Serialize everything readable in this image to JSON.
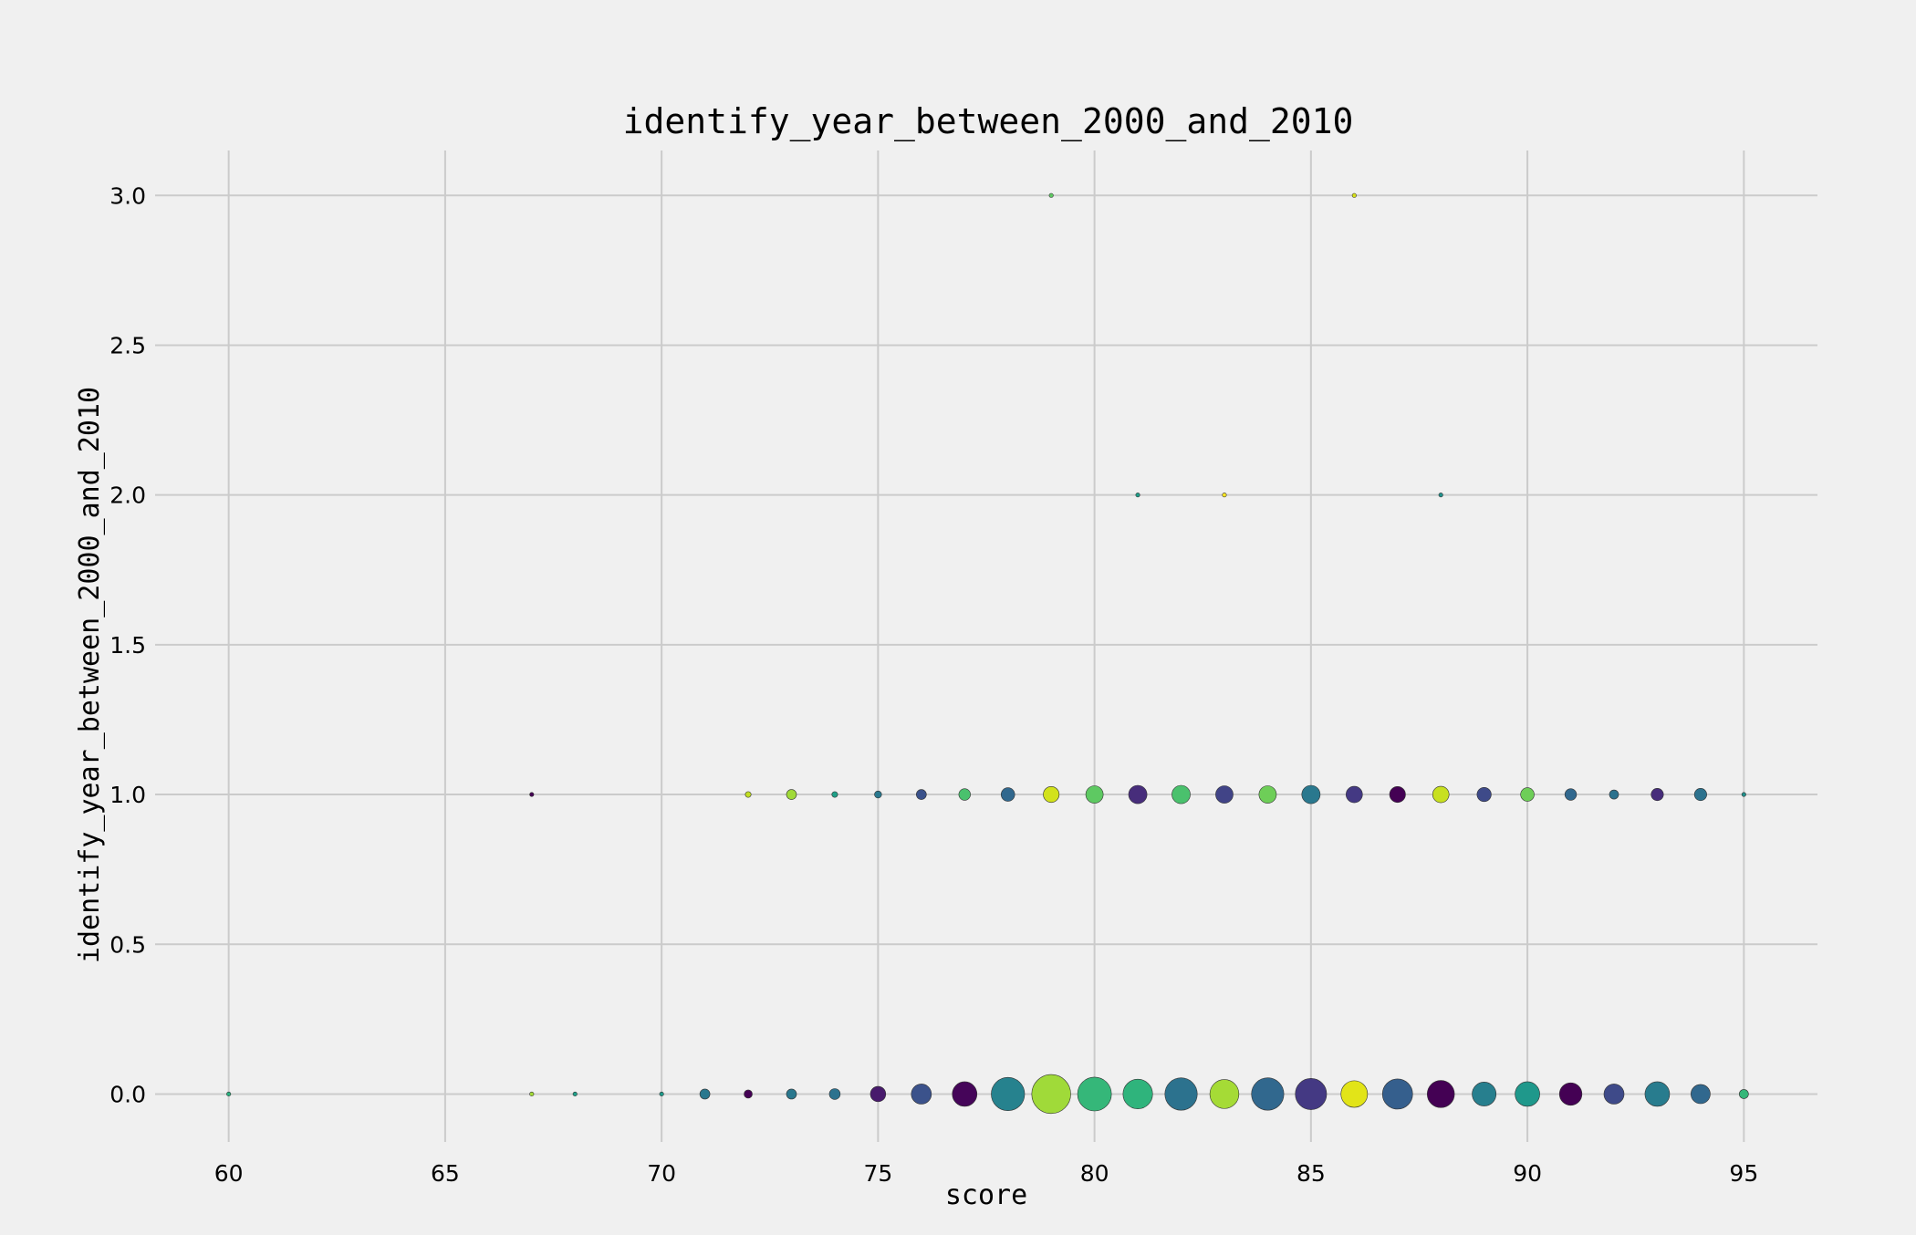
{
  "chart_data": {
    "type": "scatter",
    "title": "identify_year_between_2000_and_2010",
    "xlabel": "score",
    "ylabel": "identify_year_between_2000_and_2010",
    "xlim": [
      58.3,
      96.7
    ],
    "ylim": [
      -0.16,
      3.15
    ],
    "xticks": [
      60,
      65,
      70,
      75,
      80,
      85,
      90,
      95
    ],
    "xtick_labels": [
      "60",
      "65",
      "70",
      "75",
      "80",
      "85",
      "90",
      "95"
    ],
    "yticks": [
      0.0,
      0.5,
      1.0,
      1.5,
      2.0,
      2.5,
      3.0
    ],
    "ytick_labels": [
      "0.0",
      "0.5",
      "1.0",
      "1.5",
      "2.0",
      "2.5",
      "3.0"
    ],
    "grid": true,
    "legend": "none",
    "size_note": "marker area scales with count of observations",
    "points": [
      {
        "x": 60,
        "y": 0,
        "size": 1,
        "color": "#2ab07f"
      },
      {
        "x": 67,
        "y": 0,
        "size": 1,
        "color": "#a2da37"
      },
      {
        "x": 68,
        "y": 0,
        "size": 1,
        "color": "#1f9f88"
      },
      {
        "x": 70,
        "y": 0,
        "size": 1,
        "color": "#1f9a8a"
      },
      {
        "x": 71,
        "y": 0,
        "size": 6,
        "color": "#2a788e"
      },
      {
        "x": 72,
        "y": 0,
        "size": 4,
        "color": "#440154"
      },
      {
        "x": 73,
        "y": 0,
        "size": 6,
        "color": "#2a788e"
      },
      {
        "x": 74,
        "y": 0,
        "size": 7,
        "color": "#2c728e"
      },
      {
        "x": 75,
        "y": 0,
        "size": 14,
        "color": "#481a6c"
      },
      {
        "x": 76,
        "y": 0,
        "size": 24,
        "color": "#3b528b"
      },
      {
        "x": 77,
        "y": 0,
        "size": 36,
        "color": "#450559"
      },
      {
        "x": 78,
        "y": 0,
        "size": 66,
        "color": "#26828e"
      },
      {
        "x": 79,
        "y": 0,
        "size": 90,
        "color": "#a0da39"
      },
      {
        "x": 80,
        "y": 0,
        "size": 68,
        "color": "#35b779"
      },
      {
        "x": 81,
        "y": 0,
        "size": 52,
        "color": "#2fb47c"
      },
      {
        "x": 82,
        "y": 0,
        "size": 62,
        "color": "#2c728e"
      },
      {
        "x": 83,
        "y": 0,
        "size": 50,
        "color": "#a5db36"
      },
      {
        "x": 84,
        "y": 0,
        "size": 62,
        "color": "#31688e"
      },
      {
        "x": 85,
        "y": 0,
        "size": 58,
        "color": "#443983"
      },
      {
        "x": 86,
        "y": 0,
        "size": 42,
        "color": "#e2e418"
      },
      {
        "x": 87,
        "y": 0,
        "size": 54,
        "color": "#355f8d"
      },
      {
        "x": 88,
        "y": 0,
        "size": 44,
        "color": "#440154"
      },
      {
        "x": 89,
        "y": 0,
        "size": 34,
        "color": "#277f8e"
      },
      {
        "x": 90,
        "y": 0,
        "size": 36,
        "color": "#1f988b"
      },
      {
        "x": 91,
        "y": 0,
        "size": 30,
        "color": "#440154"
      },
      {
        "x": 92,
        "y": 0,
        "size": 24,
        "color": "#3e4a89"
      },
      {
        "x": 93,
        "y": 0,
        "size": 36,
        "color": "#287c8e"
      },
      {
        "x": 94,
        "y": 0,
        "size": 22,
        "color": "#31688e"
      },
      {
        "x": 95,
        "y": 0,
        "size": 5,
        "color": "#35b779"
      },
      {
        "x": 67,
        "y": 1,
        "size": 1,
        "color": "#440154"
      },
      {
        "x": 72,
        "y": 1,
        "size": 2,
        "color": "#c2df23"
      },
      {
        "x": 73,
        "y": 1,
        "size": 6,
        "color": "#a0da39"
      },
      {
        "x": 74,
        "y": 1,
        "size": 2,
        "color": "#1fa088"
      },
      {
        "x": 75,
        "y": 1,
        "size": 3,
        "color": "#2a788e"
      },
      {
        "x": 76,
        "y": 1,
        "size": 6,
        "color": "#3b528b"
      },
      {
        "x": 77,
        "y": 1,
        "size": 8,
        "color": "#4ac16d"
      },
      {
        "x": 78,
        "y": 1,
        "size": 11,
        "color": "#31688e"
      },
      {
        "x": 79,
        "y": 1,
        "size": 15,
        "color": "#d2e21b"
      },
      {
        "x": 80,
        "y": 1,
        "size": 18,
        "color": "#5ec962"
      },
      {
        "x": 81,
        "y": 1,
        "size": 20,
        "color": "#472d7b"
      },
      {
        "x": 82,
        "y": 1,
        "size": 20,
        "color": "#4ac16d"
      },
      {
        "x": 83,
        "y": 1,
        "size": 18,
        "color": "#414487"
      },
      {
        "x": 84,
        "y": 1,
        "size": 18,
        "color": "#6ece58"
      },
      {
        "x": 85,
        "y": 1,
        "size": 20,
        "color": "#2a788e"
      },
      {
        "x": 86,
        "y": 1,
        "size": 16,
        "color": "#443983"
      },
      {
        "x": 87,
        "y": 1,
        "size": 15,
        "color": "#440154"
      },
      {
        "x": 88,
        "y": 1,
        "size": 16,
        "color": "#c8e020"
      },
      {
        "x": 89,
        "y": 1,
        "size": 12,
        "color": "#3e4a89"
      },
      {
        "x": 90,
        "y": 1,
        "size": 11,
        "color": "#6ece58"
      },
      {
        "x": 91,
        "y": 1,
        "size": 8,
        "color": "#31688e"
      },
      {
        "x": 92,
        "y": 1,
        "size": 5,
        "color": "#2c728e"
      },
      {
        "x": 93,
        "y": 1,
        "size": 9,
        "color": "#472d7b"
      },
      {
        "x": 94,
        "y": 1,
        "size": 9,
        "color": "#2c728e"
      },
      {
        "x": 95,
        "y": 1,
        "size": 1,
        "color": "#21918c"
      },
      {
        "x": 81,
        "y": 2,
        "size": 1,
        "color": "#1f9e89"
      },
      {
        "x": 83,
        "y": 2,
        "size": 1,
        "color": "#fde725"
      },
      {
        "x": 88,
        "y": 2,
        "size": 1,
        "color": "#21918c"
      },
      {
        "x": 79,
        "y": 3,
        "size": 1,
        "color": "#5ec962"
      },
      {
        "x": 86,
        "y": 3,
        "size": 1,
        "color": "#d8e219"
      }
    ]
  }
}
